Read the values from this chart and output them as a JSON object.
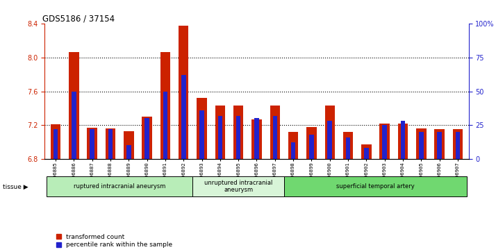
{
  "title": "GDS5186 / 37154",
  "samples": [
    "GSM1306885",
    "GSM1306886",
    "GSM1306887",
    "GSM1306888",
    "GSM1306889",
    "GSM1306890",
    "GSM1306891",
    "GSM1306892",
    "GSM1306893",
    "GSM1306894",
    "GSM1306895",
    "GSM1306896",
    "GSM1306897",
    "GSM1306898",
    "GSM1306899",
    "GSM1306900",
    "GSM1306901",
    "GSM1306902",
    "GSM1306903",
    "GSM1306904",
    "GSM1306905",
    "GSM1306906",
    "GSM1306907"
  ],
  "transformed_count": [
    7.21,
    8.07,
    7.17,
    7.16,
    7.13,
    7.3,
    8.07,
    8.38,
    7.52,
    7.43,
    7.43,
    7.27,
    7.43,
    7.12,
    7.18,
    7.43,
    7.12,
    6.97,
    7.22,
    7.22,
    7.16,
    7.15,
    7.15
  ],
  "percentile_rank": [
    22,
    50,
    22,
    22,
    10,
    30,
    50,
    62,
    36,
    32,
    32,
    30,
    32,
    12,
    18,
    28,
    16,
    8,
    25,
    28,
    20,
    20,
    20
  ],
  "ylim_left": [
    6.8,
    8.4
  ],
  "ylim_right": [
    0,
    100
  ],
  "yticks_left": [
    6.8,
    7.2,
    7.6,
    8.0,
    8.4
  ],
  "yticks_right": [
    0,
    25,
    50,
    75,
    100
  ],
  "groups": [
    {
      "label": "ruptured intracranial aneurysm",
      "start": 0,
      "end": 8,
      "color": "#b8edb8"
    },
    {
      "label": "unruptured intracranial\naneurysm",
      "start": 8,
      "end": 13,
      "color": "#d8f5d8"
    },
    {
      "label": "superficial temporal artery",
      "start": 13,
      "end": 23,
      "color": "#70d870"
    }
  ],
  "bar_color_red": "#cc2200",
  "bar_color_blue": "#2222cc",
  "base_value": 6.8,
  "tissue_label": "tissue",
  "legend_items": [
    {
      "color": "#cc2200",
      "label": "transformed count"
    },
    {
      "color": "#2222cc",
      "label": "percentile rank within the sample"
    }
  ]
}
